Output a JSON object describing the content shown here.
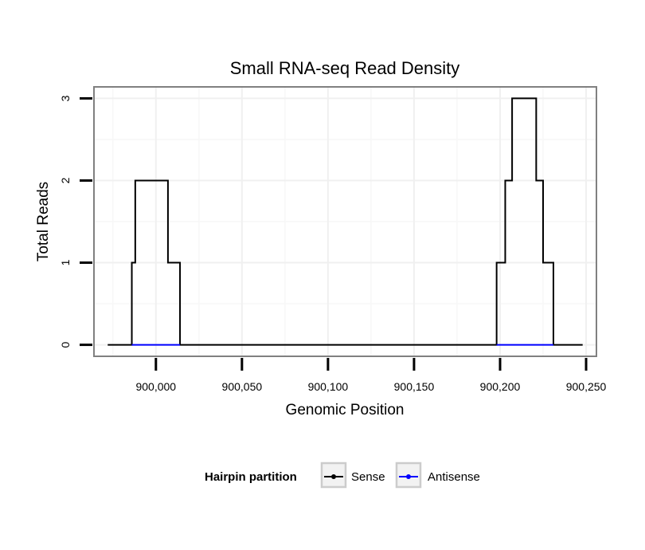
{
  "chart_data": {
    "type": "line",
    "title": "Small RNA-seq Read Density",
    "xlabel": "Genomic Position",
    "ylabel": "Total Reads",
    "xlim": [
      899964,
      900256
    ],
    "ylim": [
      -0.14,
      3.14
    ],
    "x_ticks": [
      900000,
      900050,
      900100,
      900150,
      900200,
      900250
    ],
    "x_tick_labels": [
      "900,000",
      "900,050",
      "900,100",
      "900,150",
      "900,200",
      "900,250"
    ],
    "y_ticks": [
      0,
      1,
      2,
      3
    ],
    "y_tick_labels": [
      "0",
      "1",
      "2",
      "3"
    ],
    "grid": true,
    "legend": {
      "title": "Hairpin partition",
      "position": "bottom",
      "entries": [
        {
          "name": "Sense",
          "color": "#000000"
        },
        {
          "name": "Antisense",
          "color": "#0000ff"
        }
      ]
    },
    "series": [
      {
        "name": "Sense",
        "color": "#000000",
        "x": [
          899972,
          899986,
          899986,
          899987,
          899987,
          899988,
          899988,
          900007,
          900007,
          900013,
          900013,
          900014,
          900014,
          900198,
          900198,
          900201,
          900201,
          900203,
          900203,
          900205,
          900205,
          900207,
          900207,
          900221,
          900221,
          900223,
          900223,
          900225,
          900225,
          900230,
          900230,
          900231,
          900231,
          900248
        ],
        "y": [
          0,
          0,
          1,
          1,
          1,
          1,
          2,
          2,
          1,
          1,
          1,
          1,
          0,
          0,
          1,
          1,
          1,
          1,
          2,
          2,
          2,
          2,
          3,
          3,
          2,
          2,
          2,
          2,
          1,
          1,
          1,
          1,
          0,
          0
        ]
      },
      {
        "name": "Antisense",
        "color": "#0000ff",
        "x": [
          899986,
          900014,
          null,
          900198,
          900231
        ],
        "y": [
          0,
          0,
          null,
          0,
          0
        ]
      }
    ]
  }
}
